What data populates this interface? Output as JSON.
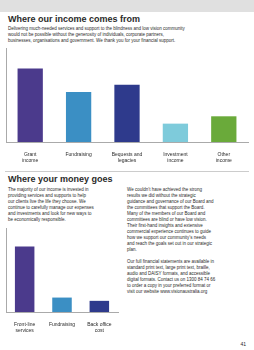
{
  "chart_data": [
    {
      "type": "bar",
      "title": "Where our income comes from",
      "subtitle": "Delivering much-needed services and support to the blindness and low vision community\nwould not be possible without the generosity of individuals, corporate partners,\nbusinesses, organisations and government. We thank you for your financial support.",
      "categories": [
        "Grant\nincome",
        "Fundraising",
        "Bequests and\nlegacies",
        "Investment\nincome",
        "Other\nincome"
      ],
      "values": [
        100,
        68,
        78,
        25,
        35
      ],
      "colors": [
        "#4b3a8c",
        "#3b8fc4",
        "#2e3a8c",
        "#7ecbdb",
        "#6aaa3a"
      ],
      "ylim": [
        0,
        128
      ],
      "grid": false,
      "tick_labels": "x"
    },
    {
      "type": "bar",
      "title": "Where your money goes",
      "annotations": [
        "The majority of our income is invested in\nproviding services and supports to help\nour clients live the life they choose. We\ncontinue to carefully manage our expenses\nand investments and look for new ways to\nbe economically responsible.",
        "We couldn’t have achieved the strong\nresults we did without the strategic\nguidance and governance of our Board and\nthe committees that support the Board.\nMany of the members of our Board and\ncommittees are blind or have low vision.\nTheir first-hand insights and extensive\ncommercial experience continues to guide\nhow we support our community’s needs\nand reach the goals set out in our strategic\nplan.\n\nOur full financial statements are available in\nstandard print text, large print text, braille,\naudio and DAISY formats, and accessible\ndigital formats. Contact us on 1300 84 74 66\nto order a copy in your preferred format or\nvisit our website www.visionaustralia.org",
        "41"
      ],
      "categories": [
        "Front-line\nservices",
        "Fundraising",
        "Back office\ncost"
      ],
      "values": [
        100,
        22,
        17
      ],
      "colors": [
        "#4b3a8c",
        "#3b8fc4",
        "#2e3a8c"
      ],
      "ylim": [
        0,
        128
      ],
      "grid": false,
      "tick_labels": "x"
    }
  ]
}
